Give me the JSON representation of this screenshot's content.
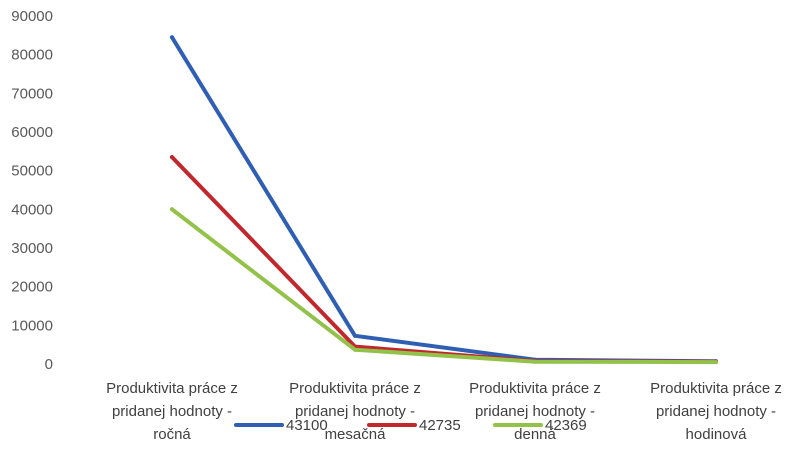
{
  "chart_data": {
    "type": "line",
    "categories": [
      [
        "Produktivita práce z",
        "pridanej hodnoty -",
        "ročná"
      ],
      [
        "Produktivita práce z",
        "pridanej hodnoty -",
        "mesačná"
      ],
      [
        "Produktivita práce z",
        "pridanej hodnoty -",
        "denná"
      ],
      [
        "Produktivita práce z",
        "pridanej hodnoty -",
        "hodinová"
      ]
    ],
    "series": [
      {
        "name": "43100",
        "color": "#2e5fb2",
        "values": [
          84500,
          7300,
          1100,
          700
        ]
      },
      {
        "name": "42735",
        "color": "#c0282d",
        "values": [
          53500,
          4500,
          750,
          600
        ]
      },
      {
        "name": "42369",
        "color": "#92c24a",
        "values": [
          40000,
          3700,
          600,
          500
        ]
      }
    ],
    "ylim": [
      0,
      90000
    ],
    "yticks": [
      "0",
      "10000",
      "20000",
      "30000",
      "40000",
      "50000",
      "60000",
      "70000",
      "80000",
      "90000"
    ],
    "grid": false,
    "legend_position": "bottom"
  }
}
